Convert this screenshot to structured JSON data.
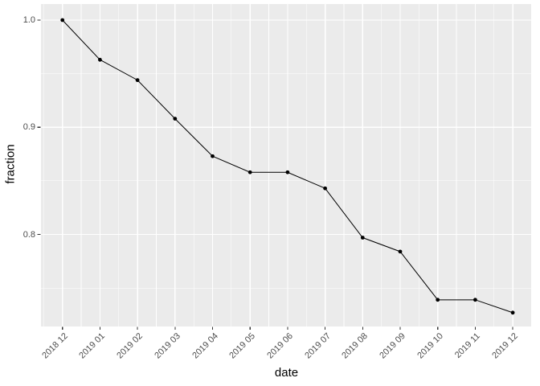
{
  "chart_data": {
    "type": "line",
    "title": "",
    "xlabel": "date",
    "ylabel": "fraction",
    "categories": [
      "2018 12",
      "2019 01",
      "2019 02",
      "2019 03",
      "2019 04",
      "2019 05",
      "2019 06",
      "2019 07",
      "2019 08",
      "2019 09",
      "2019 10",
      "2019 11",
      "2019 12"
    ],
    "values": [
      1.0,
      0.963,
      0.944,
      0.908,
      0.873,
      0.858,
      0.858,
      0.843,
      0.797,
      0.784,
      0.739,
      0.739,
      0.727
    ],
    "series_name": "fraction",
    "ylim": [
      0.7141,
      1.015
    ],
    "y_ticks": [
      {
        "value": 1.0,
        "label": "1.0"
      },
      {
        "value": 0.9,
        "label": "0.9"
      },
      {
        "value": 0.8,
        "label": "0.8"
      }
    ],
    "y_minor_ticks": [
      0.95,
      0.85,
      0.75
    ],
    "grid": "major-and-minor",
    "legend": "none",
    "point_marker": "filled-circle",
    "colors": {
      "page_bg": "#FFFFFF",
      "panel_bg": "#EBEBEB",
      "grid": "#FFFFFF",
      "line": "#000000",
      "point": "#000000",
      "axis_text": "#4D4D4D",
      "axis_title": "#000000",
      "tick_mark": "#333333"
    }
  }
}
